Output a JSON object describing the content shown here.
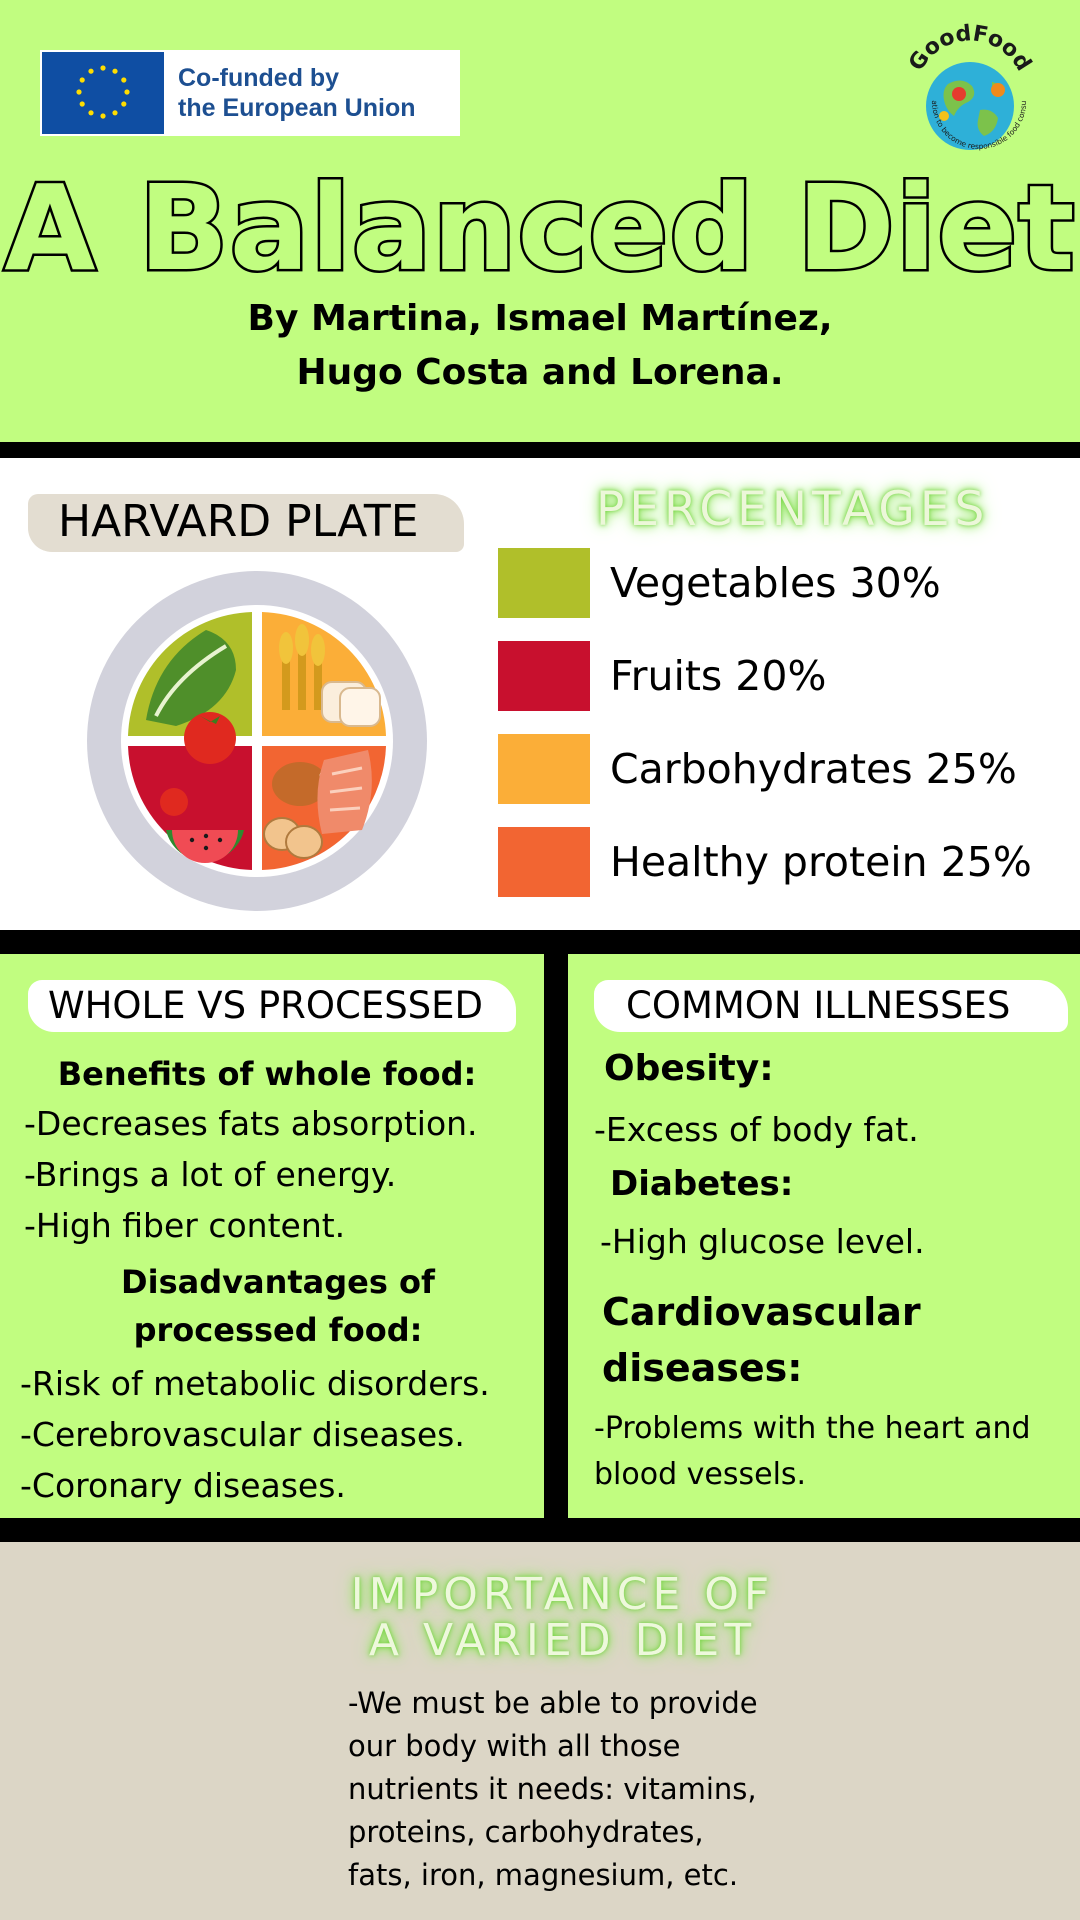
{
  "header": {
    "eu_badge_line1": "Co-funded by",
    "eu_badge_line2": "the European Union",
    "logo_text": "GoodFood",
    "logo_ring_text": "Education to become responsible food consumers",
    "title": "A Balanced Diet",
    "authors_line1": "By Martina, Ismael Martínez,",
    "authors_line2": "Hugo Costa and Lorena."
  },
  "plate_section": {
    "heading": "HARVARD PLATE",
    "percentages_heading": "PERCENTAGES",
    "legend": [
      {
        "label": "Vegetables 30%",
        "color": "#b0bf2a"
      },
      {
        "label": "Fruits 20%",
        "color": "#c8102e"
      },
      {
        "label": "Carbohydrates 25%",
        "color": "#fbae38"
      },
      {
        "label": "Healthy protein 25%",
        "color": "#f26532"
      }
    ]
  },
  "whole_vs_processed": {
    "heading": "WHOLE VS PROCESSED",
    "benefits_title": "Benefits of whole food:",
    "benefits": [
      "-Decreases fats absorption.",
      "-Brings a lot of energy.",
      "-High fiber content."
    ],
    "disadvantages_title_line1": "Disadvantages of",
    "disadvantages_title_line2": "processed food:",
    "disadvantages": [
      "-Risk of metabolic disorders.",
      "-Cerebrovascular diseases.",
      "-Coronary diseases."
    ]
  },
  "common_illnesses": {
    "heading": "COMMON ILLNESSES",
    "obesity_title": "Obesity:",
    "obesity_desc": "-Excess of body fat.",
    "diabetes_title": "Diabetes:",
    "diabetes_desc": "-High glucose level.",
    "cardio_title_line1": "Cardiovascular",
    "cardio_title_line2": "diseases:",
    "cardio_desc_line1": "-Problems with the heart and",
    "cardio_desc_line2": "blood vessels."
  },
  "importance": {
    "title_line1": "IMPORTANCE OF",
    "title_line2": "A VARIED DIET",
    "text_lines": [
      "-We must be able to provide",
      "our body with all those",
      "nutrients it needs: vitamins,",
      "proteins, carbohydrates,",
      "fats, iron, magnesium, etc."
    ]
  },
  "colors": {
    "background_green": "#c1fd80",
    "beige": "#dcd6c6",
    "eu_blue": "#0f4ea3"
  }
}
